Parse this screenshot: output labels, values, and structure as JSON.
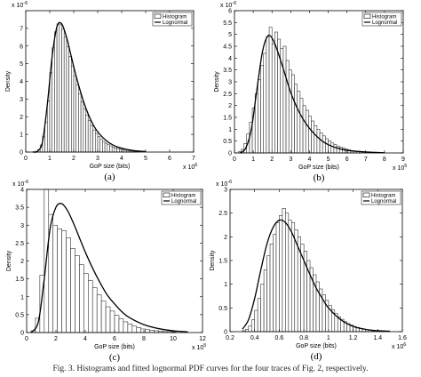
{
  "caption": "Fig. 3.   Histograms and fitted lognormal PDF curves for the four traces of Fig. 2, respectively.",
  "chart_data": [
    {
      "type": "bar",
      "panel_label": "(a)",
      "xlabel": "GoP size (bits)",
      "ylabel": "Density",
      "x_multiplier": "x 10",
      "x_exponent": "6",
      "y_multiplier": "x 10",
      "y_exponent": "-6",
      "xlim": [
        0,
        7
      ],
      "ylim": [
        0,
        8
      ],
      "xticks": [
        0,
        1,
        2,
        3,
        4,
        5,
        6,
        7
      ],
      "yticks": [
        0,
        1,
        2,
        3,
        4,
        5,
        6,
        7
      ],
      "legend": [
        "Histogram",
        "Lognormal"
      ],
      "legend_position": "top-right",
      "bin_start": 0.3,
      "bin_width": 0.1,
      "histogram": [
        0.02,
        0.05,
        0.15,
        0.4,
        0.9,
        1.7,
        2.9,
        4.5,
        5.9,
        6.8,
        7.25,
        7.2,
        6.95,
        6.5,
        5.95,
        5.4,
        4.85,
        4.3,
        3.8,
        3.3,
        2.85,
        2.45,
        2.1,
        1.8,
        1.5,
        1.25,
        1.05,
        0.88,
        0.72,
        0.6,
        0.5,
        0.42,
        0.35,
        0.29,
        0.24,
        0.2,
        0.16,
        0.13,
        0.1,
        0.08,
        0.06,
        0.05,
        0.04,
        0.03
      ],
      "lognormal": {
        "x": [
          0.3,
          0.5,
          0.7,
          0.9,
          1.1,
          1.3,
          1.5,
          1.7,
          1.9,
          2.1,
          2.4,
          2.7,
          3.0,
          3.4,
          3.8,
          4.2,
          4.6,
          5.0
        ],
        "y": [
          0.0,
          0.05,
          0.6,
          2.7,
          5.4,
          7.1,
          7.25,
          6.5,
          5.4,
          4.3,
          2.9,
          1.85,
          1.15,
          0.6,
          0.3,
          0.15,
          0.07,
          0.03
        ]
      }
    },
    {
      "type": "bar",
      "panel_label": "(b)",
      "xlabel": "GoP size (bits)",
      "ylabel": "Density",
      "x_multiplier": "x 10",
      "x_exponent": "5",
      "y_multiplier": "x 10",
      "y_exponent": "-6",
      "xlim": [
        0,
        9
      ],
      "ylim": [
        0,
        6
      ],
      "xticks": [
        0,
        1,
        2,
        3,
        4,
        5,
        6,
        7,
        8,
        9
      ],
      "yticks": [
        0,
        0.5,
        1,
        1.5,
        2,
        2.5,
        3,
        3.5,
        4,
        4.5,
        5,
        5.5,
        6
      ],
      "legend": [
        "Histogram",
        "Lognormal"
      ],
      "legend_position": "top-right",
      "bin_start": 0.2,
      "bin_width": 0.15,
      "histogram": [
        0.05,
        0.15,
        0.4,
        0.8,
        1.3,
        1.9,
        2.5,
        3.1,
        3.7,
        4.2,
        4.9,
        5.3,
        4.6,
        5.1,
        4.8,
        4.4,
        4.5,
        3.9,
        3.5,
        3.3,
        2.9,
        2.6,
        2.3,
        2.0,
        1.8,
        1.55,
        1.35,
        1.15,
        1.0,
        0.85,
        0.72,
        0.6,
        0.5,
        0.42,
        0.35,
        0.29,
        0.24,
        0.2,
        0.16,
        0.13,
        0.1,
        0.08,
        0.06,
        0.05
      ],
      "lognormal": {
        "x": [
          0.3,
          0.6,
          0.9,
          1.2,
          1.5,
          1.8,
          2.1,
          2.4,
          2.7,
          3.0,
          3.4,
          3.8,
          4.2,
          4.6,
          5.0,
          5.5,
          6.0,
          7.0,
          8.0
        ],
        "y": [
          0.0,
          0.2,
          1.0,
          2.7,
          4.3,
          4.95,
          4.7,
          4.05,
          3.3,
          2.55,
          1.8,
          1.25,
          0.85,
          0.55,
          0.35,
          0.2,
          0.11,
          0.04,
          0.01
        ]
      }
    },
    {
      "type": "bar",
      "panel_label": "(c)",
      "xlabel": "GoP size (bits)",
      "ylabel": "Density",
      "x_multiplier": "x 10",
      "x_exponent": "5",
      "y_multiplier": "x 10",
      "y_exponent": "-6",
      "xlim": [
        0,
        12
      ],
      "ylim": [
        0,
        4
      ],
      "xticks": [
        0,
        2,
        4,
        6,
        8,
        10,
        12
      ],
      "yticks": [
        0,
        0.5,
        1,
        1.5,
        2,
        2.5,
        3,
        3.5,
        4
      ],
      "legend": [
        "Histogram",
        "Lognormal"
      ],
      "legend_position": "top-right",
      "bin_start": 0.3,
      "bin_width": 0.3,
      "histogram": [
        0.05,
        0.4,
        1.6,
        4.0,
        3.3,
        3.0,
        2.9,
        2.85,
        2.65,
        2.35,
        2.15,
        1.9,
        1.65,
        1.45,
        1.25,
        1.05,
        0.88,
        0.72,
        0.6,
        0.48,
        0.38,
        0.3,
        0.24,
        0.18,
        0.14,
        0.1,
        0.08,
        0.06,
        0.05,
        0.04,
        0.03,
        0.03,
        0.02
      ],
      "lognormal": {
        "x": [
          0.3,
          0.8,
          1.2,
          1.6,
          2.0,
          2.4,
          2.8,
          3.2,
          3.6,
          4.0,
          4.5,
          5.0,
          5.5,
          6.0,
          6.5,
          7.0,
          8.0,
          9.0,
          10.0,
          11.0
        ],
        "y": [
          0.0,
          0.3,
          1.5,
          2.9,
          3.5,
          3.6,
          3.4,
          3.05,
          2.65,
          2.25,
          1.8,
          1.4,
          1.05,
          0.8,
          0.58,
          0.42,
          0.22,
          0.11,
          0.05,
          0.02
        ]
      }
    },
    {
      "type": "bar",
      "panel_label": "(d)",
      "xlabel": "GoP size (bits)",
      "ylabel": "Density",
      "x_multiplier": "x 10",
      "x_exponent": "6",
      "y_multiplier": "x 10",
      "y_exponent": "-6",
      "xlim": [
        0.2,
        1.6
      ],
      "ylim": [
        0,
        3
      ],
      "xticks": [
        0.2,
        0.4,
        0.6,
        0.8,
        1,
        1.2,
        1.4,
        1.6
      ],
      "yticks": [
        0,
        0.5,
        1,
        1.5,
        2,
        2.5,
        3
      ],
      "legend": [
        "Histogram",
        "Lognormal"
      ],
      "legend_position": "top-right",
      "bin_start": 0.3,
      "bin_width": 0.025,
      "histogram": [
        0.02,
        0.05,
        0.12,
        0.25,
        0.45,
        0.7,
        1.0,
        1.3,
        1.6,
        1.85,
        2.05,
        2.3,
        2.45,
        2.6,
        2.5,
        2.35,
        2.3,
        2.15,
        2.0,
        1.85,
        1.7,
        1.5,
        1.35,
        1.2,
        1.05,
        0.9,
        0.78,
        0.66,
        0.55,
        0.46,
        0.38,
        0.31,
        0.26,
        0.21,
        0.17,
        0.14,
        0.11,
        0.09,
        0.07,
        0.05,
        0.04,
        0.03,
        0.02
      ],
      "lognormal": {
        "x": [
          0.3,
          0.35,
          0.4,
          0.45,
          0.5,
          0.55,
          0.6,
          0.65,
          0.7,
          0.75,
          0.8,
          0.85,
          0.9,
          0.95,
          1.0,
          1.1,
          1.2,
          1.3,
          1.4,
          1.5
        ],
        "y": [
          0.05,
          0.25,
          0.7,
          1.3,
          1.85,
          2.2,
          2.35,
          2.3,
          2.1,
          1.8,
          1.5,
          1.2,
          0.92,
          0.7,
          0.5,
          0.25,
          0.11,
          0.05,
          0.02,
          0.01
        ]
      }
    }
  ]
}
